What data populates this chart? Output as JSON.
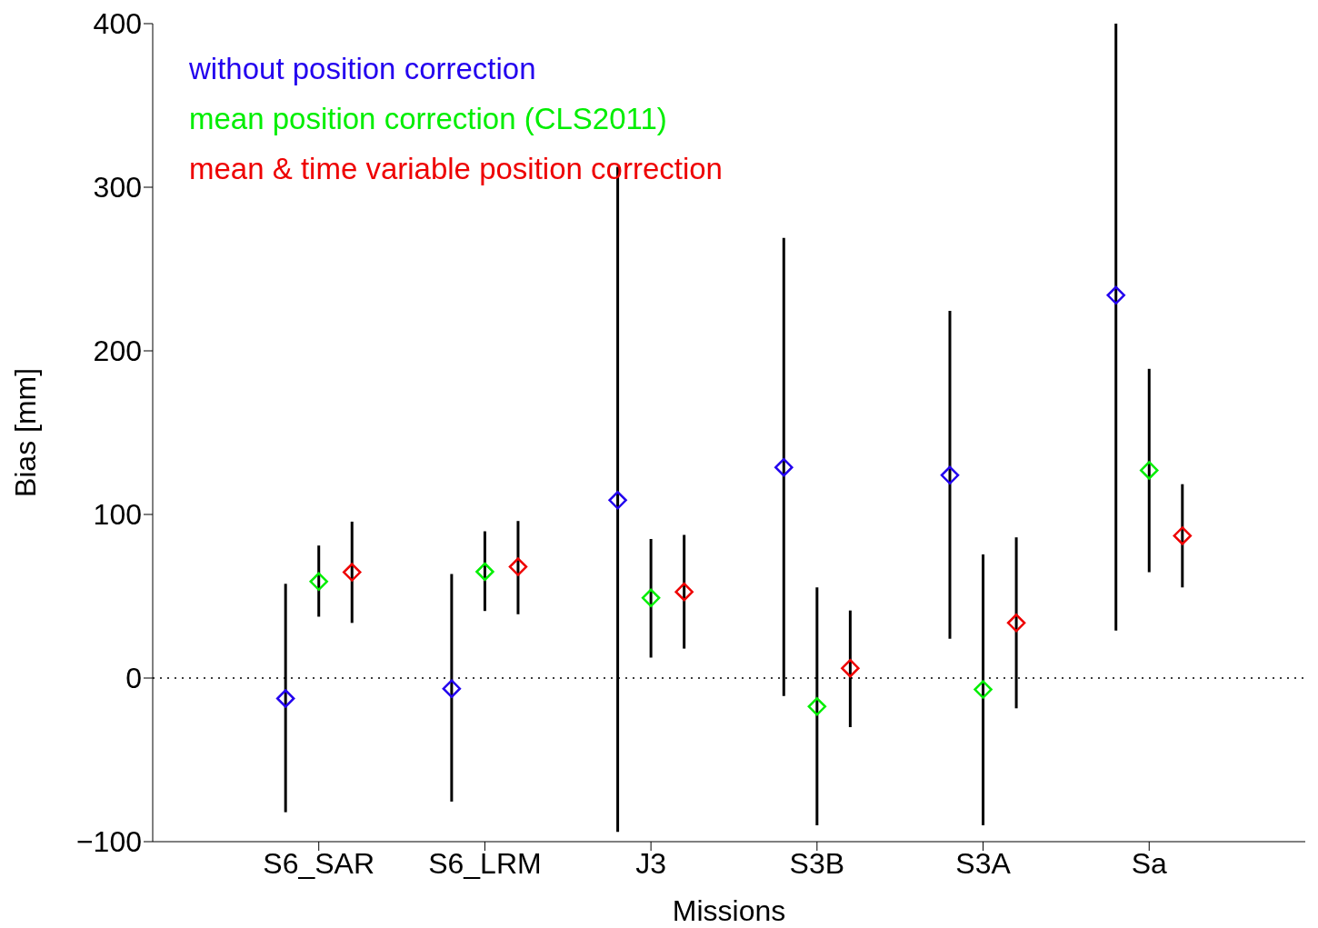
{
  "chart_data": {
    "type": "scatter",
    "xlabel": "Missions",
    "ylabel": "Bias [mm]",
    "categories": [
      "S6_SAR",
      "S6_LRM",
      "J3",
      "S3B",
      "S3A",
      "Sa"
    ],
    "ylim": [
      -100,
      400
    ],
    "yticks": [
      -100,
      0,
      100,
      200,
      300,
      400
    ],
    "grid": false,
    "legend": "top left",
    "marker": "diamond",
    "ref_lines": [
      {
        "axis": "y",
        "value": 0,
        "line_style": "dotted",
        "color": "#000000"
      }
    ],
    "series": [
      {
        "name": "without position correction",
        "color": "#2200ee",
        "values": [
          -12.5,
          -6.5,
          108.7,
          128.8,
          124,
          234
        ],
        "errors": [
          [
            -82,
            57.6
          ],
          [
            -75.5,
            63.6
          ],
          [
            -94,
            312.5
          ],
          [
            -11,
            269
          ],
          [
            24,
            224.5
          ],
          [
            29,
            400
          ]
        ]
      },
      {
        "name": "mean position correction (CLS2011)",
        "color": "#00ee00",
        "values": [
          59,
          65,
          49,
          -17.4,
          -7,
          127
        ],
        "errors": [
          [
            37.5,
            81
          ],
          [
            41,
            89.7
          ],
          [
            12.5,
            85
          ],
          [
            -90,
            55.4
          ],
          [
            -90,
            75.5
          ],
          [
            64.7,
            189
          ]
        ]
      },
      {
        "name": "mean & time variable position correction",
        "color": "#ee0000",
        "values": [
          64.7,
          68,
          52.7,
          6,
          33.7,
          87
        ],
        "errors": [
          [
            33.7,
            95.6
          ],
          [
            39,
            96
          ],
          [
            18,
            87.5
          ],
          [
            -30,
            41.3
          ],
          [
            -18.5,
            86
          ],
          [
            55.4,
            118.5
          ]
        ]
      }
    ]
  }
}
